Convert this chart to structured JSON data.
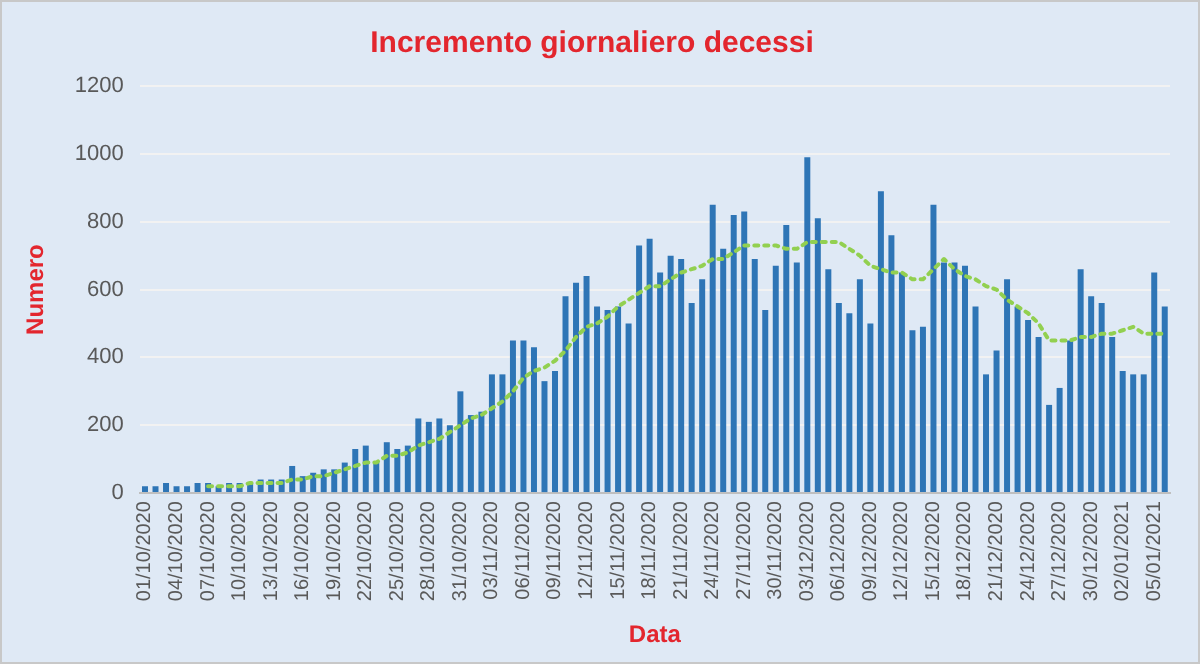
{
  "chart_data": {
    "type": "bar",
    "title": "Incremento giornaliero decessi",
    "xlabel": "Data",
    "ylabel": "Numero",
    "categories": [
      "01/10/2020",
      null,
      null,
      "04/10/2020",
      null,
      null,
      "07/10/2020",
      null,
      null,
      "10/10/2020",
      null,
      null,
      "13/10/2020",
      null,
      null,
      "16/10/2020",
      null,
      null,
      "19/10/2020",
      null,
      null,
      "22/10/2020",
      null,
      null,
      "25/10/2020",
      null,
      null,
      "28/10/2020",
      null,
      null,
      "31/10/2020",
      null,
      null,
      "03/11/2020",
      null,
      null,
      "06/11/2020",
      null,
      null,
      "09/11/2020",
      null,
      null,
      "12/11/2020",
      null,
      null,
      "15/11/2020",
      null,
      null,
      "18/11/2020",
      null,
      null,
      "21/11/2020",
      null,
      null,
      "24/11/2020",
      null,
      null,
      "27/11/2020",
      null,
      null,
      "30/11/2020",
      null,
      null,
      "03/12/2020",
      null,
      null,
      "06/12/2020",
      null,
      null,
      "09/12/2020",
      null,
      null,
      "12/12/2020",
      null,
      null,
      "15/12/2020",
      null,
      null,
      "18/12/2020",
      null,
      null,
      "21/12/2020",
      null,
      null,
      "24/12/2020",
      null,
      null,
      "27/12/2020",
      null,
      null,
      "30/12/2020",
      null,
      null,
      "02/01/2021",
      null,
      null,
      "05/01/2021",
      null
    ],
    "series": [
      {
        "color": "#2e75b6",
        "values": [
          20,
          20,
          30,
          20,
          20,
          30,
          30,
          20,
          30,
          30,
          30,
          40,
          40,
          40,
          80,
          50,
          60,
          70,
          70,
          90,
          130,
          140,
          90,
          150,
          130,
          140,
          220,
          210,
          220,
          200,
          300,
          230,
          240,
          350,
          350,
          450,
          450,
          430,
          330,
          360,
          580,
          620,
          640,
          550,
          540,
          550,
          500,
          730,
          750,
          650,
          700,
          690,
          560,
          630,
          850,
          720,
          820,
          830,
          690,
          540,
          670,
          790,
          680,
          990,
          810,
          660,
          560,
          530,
          630,
          500,
          890,
          760,
          650,
          480,
          490,
          850,
          680,
          680,
          670,
          550,
          350,
          420,
          630,
          550,
          510,
          460,
          260,
          310,
          450,
          660,
          580,
          560,
          460,
          360,
          350,
          350,
          650,
          550
        ]
      },
      {
        "type": "line",
        "color": "#92d050",
        "line_style": "dotted",
        "marker": "none",
        "values": [
          null,
          null,
          null,
          null,
          null,
          null,
          20,
          20,
          20,
          20,
          30,
          30,
          30,
          30,
          40,
          40,
          50,
          50,
          60,
          70,
          80,
          90,
          90,
          110,
          110,
          120,
          140,
          150,
          160,
          180,
          200,
          220,
          230,
          250,
          270,
          300,
          340,
          360,
          370,
          390,
          420,
          460,
          490,
          500,
          520,
          550,
          570,
          590,
          610,
          610,
          630,
          650,
          660,
          670,
          690,
          690,
          710,
          730,
          730,
          730,
          730,
          720,
          720,
          740,
          740,
          740,
          740,
          720,
          700,
          670,
          660,
          650,
          650,
          630,
          630,
          660,
          690,
          660,
          640,
          630,
          610,
          600,
          570,
          550,
          530,
          500,
          450,
          450,
          450,
          460,
          460,
          470,
          470,
          480,
          490,
          470,
          470,
          470
        ]
      }
    ],
    "ylim": [
      0,
      1200
    ],
    "yticks": [
      0,
      200,
      400,
      600,
      800,
      1000,
      1200
    ],
    "grid": "y"
  }
}
